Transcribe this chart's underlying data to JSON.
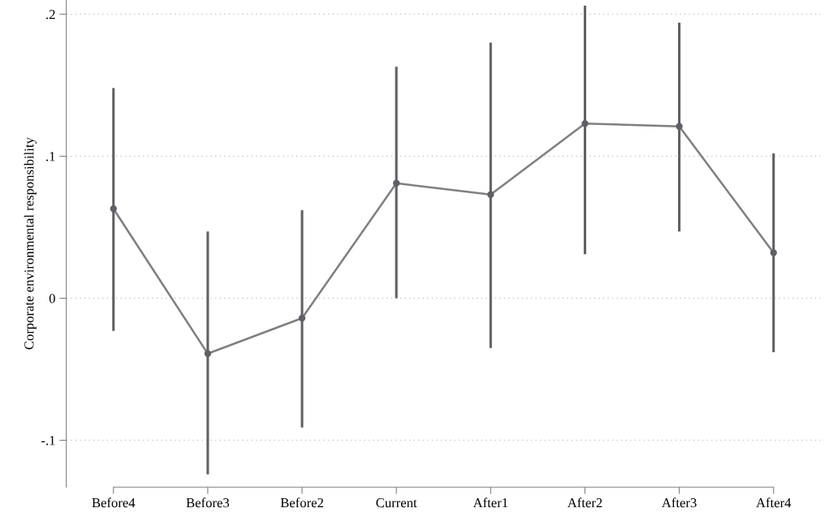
{
  "chart_data": {
    "type": "line",
    "ylabel": "Corporate environmental responsibility",
    "categories": [
      "Before4",
      "Before3",
      "Before2",
      "Current",
      "After1",
      "After2",
      "After3",
      "After4"
    ],
    "series": [
      {
        "color": "#7f7f7f",
        "values": [
          0.063,
          -0.039,
          -0.014,
          0.081,
          0.073,
          0.123,
          0.121,
          0.032
        ],
        "errors": [
          [
            -0.023,
            0.148
          ],
          [
            -0.124,
            0.047
          ],
          [
            -0.091,
            0.062
          ],
          [
            0.0,
            0.163
          ],
          [
            -0.035,
            0.18
          ],
          [
            0.031,
            0.206
          ],
          [
            0.047,
            0.194
          ],
          [
            -0.038,
            0.102
          ]
        ]
      }
    ],
    "ylim": [
      -0.133,
      0.21
    ],
    "yticks": [
      {
        "value": -0.1,
        "label": "-.1"
      },
      0,
      {
        "value": 0.1,
        "label": ".1"
      },
      {
        "value": 0.2,
        "label": ".2"
      }
    ],
    "grid": "y",
    "marker": "circle",
    "line_style": "solid"
  }
}
